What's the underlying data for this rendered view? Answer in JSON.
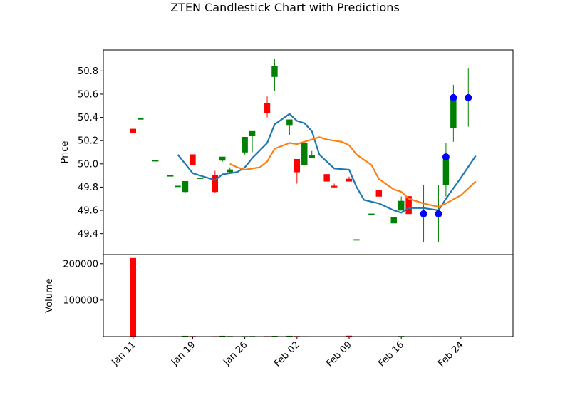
{
  "chart_data": {
    "title": "ZTEN Candlestick Chart with Predictions",
    "type": "candlestick",
    "price_panel": {
      "ylabel": "Price",
      "ylim": [
        49.22,
        50.98
      ],
      "yticks": [
        49.4,
        49.6,
        49.8,
        50.0,
        50.2,
        50.4,
        50.6,
        50.8
      ],
      "ytick_labels": [
        "49.4",
        "49.6",
        "49.8",
        "50.0",
        "50.2",
        "50.4",
        "50.6",
        "50.8"
      ]
    },
    "volume_panel": {
      "ylabel": "Volume",
      "ylim": [
        0,
        225000
      ],
      "yticks": [
        100000,
        200000
      ],
      "ytick_labels": [
        "100000",
        "200000"
      ]
    },
    "x_ticks": [
      {
        "date": "2024-01-11",
        "label": "Jan 11"
      },
      {
        "date": "2024-01-19",
        "label": "Jan 19"
      },
      {
        "date": "2024-01-26",
        "label": "Jan 26"
      },
      {
        "date": "2024-02-02",
        "label": "Feb 02"
      },
      {
        "date": "2024-02-09",
        "label": "Feb 09"
      },
      {
        "date": "2024-02-16",
        "label": "Feb 16"
      },
      {
        "date": "2024-02-24",
        "label": "Feb 24"
      }
    ],
    "x_range": [
      "2024-01-07",
      "2024-03-02"
    ],
    "candles": [
      {
        "date": "2024-01-11",
        "open": 50.3,
        "high": 50.3,
        "low": 50.27,
        "close": 50.27,
        "volume": 215000
      },
      {
        "date": "2024-01-12",
        "open": 50.39,
        "high": 50.39,
        "low": 50.39,
        "close": 50.39,
        "volume": 400
      },
      {
        "date": "2024-01-14",
        "open": 50.03,
        "high": 50.03,
        "low": 50.03,
        "close": 50.03,
        "volume": 400
      },
      {
        "date": "2024-01-16",
        "open": 49.9,
        "high": 49.9,
        "low": 49.9,
        "close": 49.9,
        "volume": 400
      },
      {
        "date": "2024-01-17",
        "open": 49.81,
        "high": 49.81,
        "low": 49.81,
        "close": 49.81,
        "volume": 400
      },
      {
        "date": "2024-01-18",
        "open": 49.76,
        "high": 49.85,
        "low": 49.75,
        "close": 49.85,
        "volume": 1500
      },
      {
        "date": "2024-01-19",
        "open": 50.08,
        "high": 50.08,
        "low": 49.99,
        "close": 49.99,
        "volume": 900
      },
      {
        "date": "2024-01-20",
        "open": 49.88,
        "high": 49.88,
        "low": 49.88,
        "close": 49.88,
        "volume": 400
      },
      {
        "date": "2024-01-22",
        "open": 49.9,
        "high": 49.94,
        "low": 49.75,
        "close": 49.76,
        "volume": 600
      },
      {
        "date": "2024-01-23",
        "open": 50.03,
        "high": 50.06,
        "low": 50.02,
        "close": 50.06,
        "volume": 1500
      },
      {
        "date": "2024-01-24",
        "open": 49.93,
        "high": 49.97,
        "low": 49.92,
        "close": 49.95,
        "volume": 800
      },
      {
        "date": "2024-01-26",
        "open": 50.1,
        "high": 50.23,
        "low": 50.08,
        "close": 50.23,
        "volume": 700
      },
      {
        "date": "2024-01-27",
        "open": 50.24,
        "high": 50.28,
        "low": 50.1,
        "close": 50.28,
        "volume": 900
      },
      {
        "date": "2024-01-29",
        "open": 50.52,
        "high": 50.58,
        "low": 50.4,
        "close": 50.44,
        "volume": 700
      },
      {
        "date": "2024-01-30",
        "open": 50.75,
        "high": 50.9,
        "low": 50.63,
        "close": 50.84,
        "volume": 1200
      },
      {
        "date": "2024-02-01",
        "open": 50.33,
        "high": 50.38,
        "low": 50.25,
        "close": 50.38,
        "volume": 1500
      },
      {
        "date": "2024-02-02",
        "open": 50.04,
        "high": 50.04,
        "low": 49.83,
        "close": 49.93,
        "volume": 900
      },
      {
        "date": "2024-02-03",
        "open": 49.99,
        "high": 50.18,
        "low": 49.99,
        "close": 50.18,
        "volume": 500
      },
      {
        "date": "2024-02-04",
        "open": 50.05,
        "high": 50.11,
        "low": 50.05,
        "close": 50.07,
        "volume": 400
      },
      {
        "date": "2024-02-06",
        "open": 49.91,
        "high": 49.91,
        "low": 49.85,
        "close": 49.85,
        "volume": 400
      },
      {
        "date": "2024-02-07",
        "open": 49.81,
        "high": 49.83,
        "low": 49.79,
        "close": 49.8,
        "volume": 400
      },
      {
        "date": "2024-02-09",
        "open": 49.87,
        "high": 49.89,
        "low": 49.85,
        "close": 49.85,
        "volume": 1800
      },
      {
        "date": "2024-02-10",
        "open": 49.35,
        "high": 49.35,
        "low": 49.35,
        "close": 49.35,
        "volume": 400
      },
      {
        "date": "2024-02-12",
        "open": 49.57,
        "high": 49.57,
        "low": 49.57,
        "close": 49.57,
        "volume": 400
      },
      {
        "date": "2024-02-13",
        "open": 49.77,
        "high": 49.77,
        "low": 49.72,
        "close": 49.72,
        "volume": 400
      },
      {
        "date": "2024-02-15",
        "open": 49.49,
        "high": 49.54,
        "low": 49.49,
        "close": 49.54,
        "volume": 400
      },
      {
        "date": "2024-02-16",
        "open": 49.6,
        "high": 49.72,
        "low": 49.6,
        "close": 49.68,
        "volume": 1000
      },
      {
        "date": "2024-02-17",
        "open": 49.72,
        "high": 49.72,
        "low": 49.57,
        "close": 49.57,
        "volume": 400
      },
      {
        "date": "2024-02-19",
        "open": 49.57,
        "high": 49.82,
        "low": 49.33,
        "close": 49.57,
        "volume": 400
      },
      {
        "date": "2024-02-21",
        "open": 49.57,
        "high": 49.82,
        "low": 49.33,
        "close": 49.57,
        "volume": 400
      },
      {
        "date": "2024-02-22",
        "open": 49.82,
        "high": 50.18,
        "low": 49.72,
        "close": 50.06,
        "volume": 400
      },
      {
        "date": "2024-02-23",
        "open": 50.31,
        "high": 50.68,
        "low": 50.19,
        "close": 50.57,
        "volume": 400
      },
      {
        "date": "2024-02-25",
        "open": 50.57,
        "high": 50.82,
        "low": 50.32,
        "close": 50.57,
        "volume": 400
      }
    ],
    "prediction_markers": [
      {
        "date": "2024-02-19",
        "value": 49.57
      },
      {
        "date": "2024-02-21",
        "value": 49.57
      },
      {
        "date": "2024-02-22",
        "value": 50.06
      },
      {
        "date": "2024-02-23",
        "value": 50.57
      },
      {
        "date": "2024-02-25",
        "value": 50.57
      }
    ],
    "moving_averages": [
      {
        "color": "#1f77b4",
        "points": [
          [
            "2024-01-17",
            50.08
          ],
          [
            "2024-01-19",
            49.92
          ],
          [
            "2024-01-21",
            49.88
          ],
          [
            "2024-01-22",
            49.86
          ],
          [
            "2024-01-23",
            49.91
          ],
          [
            "2024-01-25",
            49.93
          ],
          [
            "2024-01-26",
            49.97
          ],
          [
            "2024-01-27",
            50.05
          ],
          [
            "2024-01-29",
            50.18
          ],
          [
            "2024-01-30",
            50.34
          ],
          [
            "2024-02-01",
            50.43
          ],
          [
            "2024-02-02",
            50.37
          ],
          [
            "2024-02-03",
            50.35
          ],
          [
            "2024-02-04",
            50.28
          ],
          [
            "2024-02-05",
            50.08
          ],
          [
            "2024-02-07",
            49.96
          ],
          [
            "2024-02-09",
            49.95
          ],
          [
            "2024-02-10",
            49.8
          ],
          [
            "2024-02-11",
            49.69
          ],
          [
            "2024-02-13",
            49.66
          ],
          [
            "2024-02-15",
            49.6
          ],
          [
            "2024-02-16",
            49.58
          ],
          [
            "2024-02-17",
            49.62
          ],
          [
            "2024-02-19",
            49.62
          ],
          [
            "2024-02-21",
            49.6
          ],
          [
            "2024-02-22",
            49.7
          ],
          [
            "2024-02-24",
            49.88
          ],
          [
            "2024-02-26",
            50.07
          ]
        ]
      },
      {
        "color": "#ff7f0e",
        "points": [
          [
            "2024-01-24",
            50.0
          ],
          [
            "2024-01-25",
            49.97
          ],
          [
            "2024-01-26",
            49.95
          ],
          [
            "2024-01-28",
            49.97
          ],
          [
            "2024-01-29",
            50.02
          ],
          [
            "2024-01-30",
            50.13
          ],
          [
            "2024-02-01",
            50.18
          ],
          [
            "2024-02-02",
            50.17
          ],
          [
            "2024-02-03",
            50.19
          ],
          [
            "2024-02-05",
            50.23
          ],
          [
            "2024-02-06",
            50.21
          ],
          [
            "2024-02-08",
            50.19
          ],
          [
            "2024-02-09",
            50.16
          ],
          [
            "2024-02-10",
            50.08
          ],
          [
            "2024-02-12",
            49.99
          ],
          [
            "2024-02-13",
            49.87
          ],
          [
            "2024-02-15",
            49.78
          ],
          [
            "2024-02-16",
            49.76
          ],
          [
            "2024-02-17",
            49.7
          ],
          [
            "2024-02-19",
            49.66
          ],
          [
            "2024-02-21",
            49.63
          ],
          [
            "2024-02-22",
            49.66
          ],
          [
            "2024-02-24",
            49.73
          ],
          [
            "2024-02-26",
            49.85
          ]
        ]
      }
    ],
    "colors": {
      "up": "#008000",
      "down": "#ff0000",
      "marker": "#0000ff",
      "axis": "#000000"
    }
  }
}
